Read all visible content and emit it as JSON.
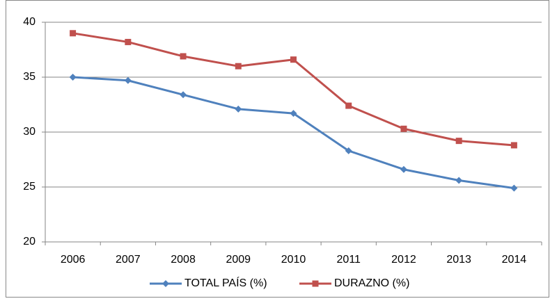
{
  "chart_data": {
    "type": "line",
    "categories": [
      "2006",
      "2007",
      "2008",
      "2009",
      "2010",
      "2011",
      "2012",
      "2013",
      "2014"
    ],
    "series": [
      {
        "name": "TOTAL PAÍS (%)",
        "color": "#4f81bd",
        "marker": "diamond",
        "values": [
          35.0,
          34.7,
          33.4,
          32.1,
          31.7,
          28.3,
          26.6,
          25.6,
          24.9
        ]
      },
      {
        "name": "DURAZNO (%)",
        "color": "#c0504d",
        "marker": "square",
        "values": [
          39.0,
          38.2,
          36.9,
          36.0,
          36.6,
          32.4,
          30.3,
          29.2,
          28.8
        ]
      }
    ],
    "ylim": [
      20,
      40
    ],
    "yticks": [
      20,
      25,
      30,
      35,
      40
    ],
    "grid": true,
    "legend": "bottom"
  }
}
